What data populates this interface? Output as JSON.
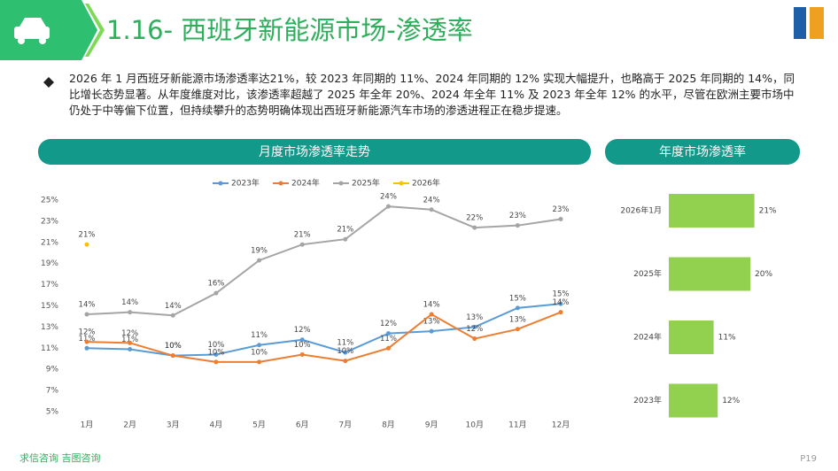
{
  "header": {
    "title": "1.16- 西班牙新能源市场-渗透率"
  },
  "summary": "2026 年 1 月西班牙新能源市场渗透率达21%，较 2023 年同期的 11%、2024 年同期的 12% 实现大幅提升，也略高于 2025 年同期的 14%，同比增长态势显著。从年度维度对比，该渗透率超越了 2025 年全年 20%、2024 年全年 11% 及 2023 年全年 12% 的水平，尽管在欧洲主要市场中仍处于中等偏下位置，但持续攀升的态势明确体现出西班牙新能源汽车市场的渗透进程正在稳步提速。",
  "footer": {
    "source": "求信咨询 吉图咨询",
    "page": "P19"
  },
  "chart_data": [
    {
      "type": "line",
      "title": "月度市场渗透率走势",
      "categories": [
        "1月",
        "2月",
        "3月",
        "4月",
        "5月",
        "6月",
        "7月",
        "8月",
        "9月",
        "10月",
        "11月",
        "12月"
      ],
      "series": [
        {
          "name": "2023年",
          "color": "#5b9bd5",
          "values": [
            11.0,
            10.9,
            10.3,
            10.4,
            11.3,
            11.8,
            10.6,
            12.4,
            12.6,
            13.0,
            14.8,
            15.2
          ],
          "value_labels": [
            "11%",
            "11%",
            "10%",
            "10%",
            "11%",
            "12%",
            "11%",
            "12%",
            "13%",
            "13%",
            "15%",
            "15%"
          ]
        },
        {
          "name": "2024年",
          "color": "#ed7d31",
          "values": [
            11.6,
            11.5,
            10.3,
            9.7,
            9.7,
            10.4,
            9.8,
            11.0,
            14.2,
            11.9,
            12.8,
            14.4
          ],
          "value_labels": [
            "12%",
            "12%",
            "10%",
            "10%",
            "10%",
            "10%",
            "10%",
            "11%",
            "14%",
            "12%",
            "13%",
            "14%"
          ]
        },
        {
          "name": "2025年",
          "color": "#a5a5a5",
          "values": [
            14.2,
            14.4,
            14.1,
            16.2,
            19.3,
            20.8,
            21.3,
            24.4,
            24.1,
            22.4,
            22.6,
            23.2
          ],
          "value_labels": [
            "14%",
            "14%",
            "14%",
            "16%",
            "19%",
            "21%",
            "21%",
            "24%",
            "24%",
            "22%",
            "23%",
            "23%"
          ]
        },
        {
          "name": "2026年",
          "color": "#ffc000",
          "values": [
            20.8,
            null,
            null,
            null,
            null,
            null,
            null,
            null,
            null,
            null,
            null,
            null
          ],
          "value_labels": [
            "21%",
            null,
            null,
            null,
            null,
            null,
            null,
            null,
            null,
            null,
            null,
            null
          ]
        }
      ],
      "ylim": [
        5,
        25
      ],
      "yticks": [
        {
          "value": 5,
          "label": "5%"
        },
        {
          "value": 7,
          "label": "7%"
        },
        {
          "value": 9,
          "label": "9%"
        },
        {
          "value": 11,
          "label": "11%"
        },
        {
          "value": 13,
          "label": "13%"
        },
        {
          "value": 15,
          "label": "15%"
        },
        {
          "value": 17,
          "label": "17%"
        },
        {
          "value": 19,
          "label": "19%"
        },
        {
          "value": 21,
          "label": "21%"
        },
        {
          "value": 23,
          "label": "23%"
        },
        {
          "value": 25,
          "label": "25%"
        }
      ],
      "legend": "top"
    },
    {
      "type": "barh",
      "title": "年度市场渗透率",
      "categories": [
        "2026年1月",
        "2025年",
        "2024年",
        "2023年"
      ],
      "values": [
        21,
        20,
        11,
        12
      ],
      "value_labels": [
        "21%",
        "20%",
        "11%",
        "12%"
      ],
      "color": "#92d050"
    }
  ]
}
